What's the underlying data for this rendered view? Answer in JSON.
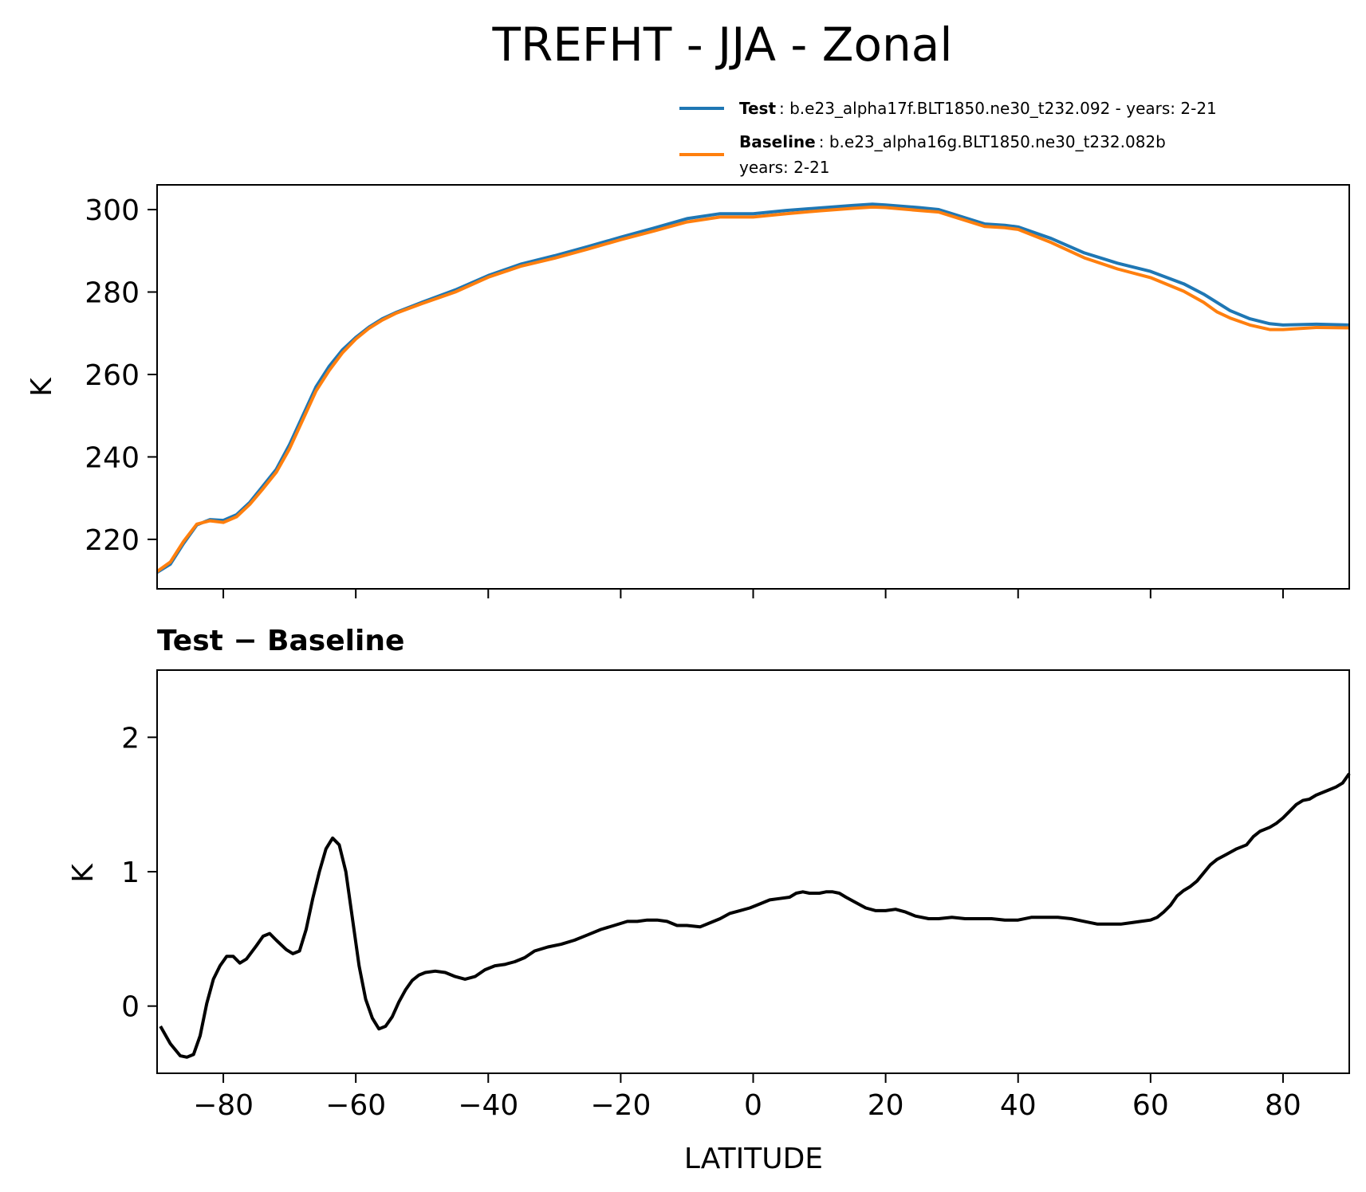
{
  "figure": {
    "title": "TREFHT - JJA - Zonal"
  },
  "legend": {
    "items": [
      {
        "key": "Test",
        "desc": ": b.e23_alpha17f.BLT1850.ne30_t232.092 - years: 2-21",
        "line2": ""
      },
      {
        "key": "Baseline",
        "desc": ": b.e23_alpha16g.BLT1850.ne30_t232.082b",
        "line2": "years: 2-21"
      }
    ]
  },
  "chart_data": [
    {
      "type": "line",
      "title": "",
      "xlabel": "",
      "ylabel": "K",
      "xlim": [
        -90,
        90
      ],
      "ylim": [
        208,
        306
      ],
      "yticks": [
        220,
        240,
        260,
        280,
        300
      ],
      "yticklabels": [
        "220",
        "240",
        "260",
        "280",
        "300"
      ],
      "grid": false,
      "legend_position": "above-right",
      "series": [
        {
          "name": "Test",
          "color": "#1f77b4",
          "points": [
            [
              -90,
              212
            ],
            [
              -88,
              214
            ],
            [
              -86,
              219
            ],
            [
              -84,
              223.5
            ],
            [
              -82,
              224.8
            ],
            [
              -80,
              224.6
            ],
            [
              -78,
              226
            ],
            [
              -76,
              229
            ],
            [
              -74,
              233
            ],
            [
              -72,
              237
            ],
            [
              -70,
              243
            ],
            [
              -68,
              250
            ],
            [
              -66,
              257
            ],
            [
              -64,
              262
            ],
            [
              -62,
              266
            ],
            [
              -60,
              269
            ],
            [
              -58,
              271.5
            ],
            [
              -56,
              273.5
            ],
            [
              -54,
              275
            ],
            [
              -50,
              277.5
            ],
            [
              -45,
              280.5
            ],
            [
              -40,
              284
            ],
            [
              -35,
              286.8
            ],
            [
              -30,
              288.8
            ],
            [
              -25,
              291
            ],
            [
              -20,
              293.3
            ],
            [
              -15,
              295.5
            ],
            [
              -10,
              297.8
            ],
            [
              -5,
              299
            ],
            [
              0,
              299
            ],
            [
              5,
              299.8
            ],
            [
              10,
              300.4
            ],
            [
              15,
              301
            ],
            [
              18,
              301.3
            ],
            [
              20,
              301.1
            ],
            [
              25,
              300.5
            ],
            [
              28,
              300
            ],
            [
              30,
              299
            ],
            [
              35,
              296.5
            ],
            [
              38,
              296.2
            ],
            [
              40,
              295.8
            ],
            [
              45,
              293
            ],
            [
              50,
              289.5
            ],
            [
              55,
              287
            ],
            [
              60,
              285
            ],
            [
              65,
              282
            ],
            [
              68,
              279.5
            ],
            [
              70,
              277.5
            ],
            [
              72,
              275.5
            ],
            [
              75,
              273.5
            ],
            [
              78,
              272.3
            ],
            [
              80,
              272
            ],
            [
              85,
              272.2
            ],
            [
              90,
              272
            ]
          ]
        },
        {
          "name": "Baseline",
          "color": "#ff7f0e",
          "points": [
            [
              -90,
              212.2
            ],
            [
              -88,
              214.5
            ],
            [
              -86,
              219.5
            ],
            [
              -84,
              223.7
            ],
            [
              -82,
              224.5
            ],
            [
              -80,
              224.1
            ],
            [
              -78,
              225.5
            ],
            [
              -76,
              228.5
            ],
            [
              -74,
              232.3
            ],
            [
              -72,
              236.3
            ],
            [
              -70,
              242
            ],
            [
              -68,
              249
            ],
            [
              -66,
              256
            ],
            [
              -64,
              261
            ],
            [
              -62,
              265.3
            ],
            [
              -60,
              268.6
            ],
            [
              -58,
              271.2
            ],
            [
              -56,
              273.2
            ],
            [
              -54,
              274.8
            ],
            [
              -50,
              277.2
            ],
            [
              -45,
              280
            ],
            [
              -40,
              283.6
            ],
            [
              -35,
              286.3
            ],
            [
              -30,
              288.2
            ],
            [
              -25,
              290.4
            ],
            [
              -20,
              292.7
            ],
            [
              -15,
              294.8
            ],
            [
              -10,
              297
            ],
            [
              -5,
              298.2
            ],
            [
              0,
              298.2
            ],
            [
              5,
              299
            ],
            [
              10,
              299.7
            ],
            [
              15,
              300.3
            ],
            [
              18,
              300.6
            ],
            [
              20,
              300.5
            ],
            [
              25,
              299.8
            ],
            [
              28,
              299.4
            ],
            [
              30,
              298.4
            ],
            [
              35,
              295.9
            ],
            [
              38,
              295.6
            ],
            [
              40,
              295.2
            ],
            [
              45,
              292
            ],
            [
              50,
              288.3
            ],
            [
              55,
              285.6
            ],
            [
              60,
              283.5
            ],
            [
              65,
              280.2
            ],
            [
              68,
              277.5
            ],
            [
              70,
              275.2
            ],
            [
              72,
              273.7
            ],
            [
              75,
              272
            ],
            [
              78,
              270.9
            ],
            [
              80,
              270.9
            ],
            [
              85,
              271.4
            ],
            [
              90,
              271.3
            ]
          ]
        }
      ]
    },
    {
      "type": "line",
      "title": "Test − Baseline",
      "xlabel": "LATITUDE",
      "ylabel": "K",
      "xlim": [
        -90,
        90
      ],
      "ylim": [
        -0.5,
        2.5
      ],
      "xticks": [
        -80,
        -60,
        -40,
        -20,
        0,
        20,
        40,
        60,
        80
      ],
      "xticklabels": [
        "−80",
        "−60",
        "−40",
        "−20",
        "0",
        "20",
        "40",
        "60",
        "80"
      ],
      "yticks": [
        0,
        1,
        2
      ],
      "yticklabels": [
        "0",
        "1",
        "2"
      ],
      "grid": false,
      "series": [
        {
          "color": "#000000",
          "points": [
            [
              -89.5,
              -0.15
            ],
            [
              -88,
              -0.28
            ],
            [
              -86.5,
              -0.37
            ],
            [
              -85.5,
              -0.38
            ],
            [
              -84.5,
              -0.36
            ],
            [
              -83.5,
              -0.22
            ],
            [
              -82.5,
              0.02
            ],
            [
              -81.5,
              0.2
            ],
            [
              -80.5,
              0.3
            ],
            [
              -79.5,
              0.37
            ],
            [
              -78.5,
              0.37
            ],
            [
              -77.5,
              0.32
            ],
            [
              -76.5,
              0.35
            ],
            [
              -75,
              0.45
            ],
            [
              -74,
              0.52
            ],
            [
              -73,
              0.54
            ],
            [
              -72,
              0.49
            ],
            [
              -70.5,
              0.42
            ],
            [
              -69.5,
              0.39
            ],
            [
              -68.5,
              0.41
            ],
            [
              -67.5,
              0.57
            ],
            [
              -66.5,
              0.8
            ],
            [
              -65.5,
              1.0
            ],
            [
              -64.5,
              1.17
            ],
            [
              -63.5,
              1.25
            ],
            [
              -62.5,
              1.2
            ],
            [
              -61.5,
              1.0
            ],
            [
              -60.5,
              0.65
            ],
            [
              -59.5,
              0.3
            ],
            [
              -58.5,
              0.05
            ],
            [
              -57.5,
              -0.09
            ],
            [
              -56.5,
              -0.17
            ],
            [
              -55.5,
              -0.15
            ],
            [
              -54.5,
              -0.08
            ],
            [
              -53.5,
              0.03
            ],
            [
              -52.5,
              0.12
            ],
            [
              -51.5,
              0.19
            ],
            [
              -50.5,
              0.23
            ],
            [
              -49.5,
              0.25
            ],
            [
              -48,
              0.26
            ],
            [
              -46.5,
              0.25
            ],
            [
              -45,
              0.22
            ],
            [
              -43.5,
              0.2
            ],
            [
              -42,
              0.22
            ],
            [
              -40.5,
              0.27
            ],
            [
              -39,
              0.3
            ],
            [
              -37.5,
              0.31
            ],
            [
              -36,
              0.33
            ],
            [
              -34.5,
              0.36
            ],
            [
              -33,
              0.41
            ],
            [
              -31,
              0.44
            ],
            [
              -29,
              0.46
            ],
            [
              -27,
              0.49
            ],
            [
              -25,
              0.53
            ],
            [
              -23,
              0.57
            ],
            [
              -21,
              0.6
            ],
            [
              -19,
              0.63
            ],
            [
              -17.5,
              0.63
            ],
            [
              -16,
              0.64
            ],
            [
              -14.5,
              0.64
            ],
            [
              -13,
              0.63
            ],
            [
              -11.5,
              0.6
            ],
            [
              -10,
              0.6
            ],
            [
              -8,
              0.59
            ],
            [
              -6.5,
              0.62
            ],
            [
              -5,
              0.65
            ],
            [
              -3.5,
              0.69
            ],
            [
              -2,
              0.71
            ],
            [
              -0.5,
              0.73
            ],
            [
              1,
              0.76
            ],
            [
              2.5,
              0.79
            ],
            [
              4,
              0.8
            ],
            [
              5.5,
              0.81
            ],
            [
              6.5,
              0.84
            ],
            [
              7.5,
              0.85
            ],
            [
              8.5,
              0.84
            ],
            [
              10,
              0.84
            ],
            [
              11,
              0.85
            ],
            [
              12,
              0.85
            ],
            [
              13,
              0.84
            ],
            [
              14,
              0.81
            ],
            [
              15.5,
              0.77
            ],
            [
              17,
              0.73
            ],
            [
              18.5,
              0.71
            ],
            [
              20,
              0.71
            ],
            [
              21.5,
              0.72
            ],
            [
              23,
              0.7
            ],
            [
              24.5,
              0.67
            ],
            [
              26.5,
              0.65
            ],
            [
              28,
              0.65
            ],
            [
              30,
              0.66
            ],
            [
              32,
              0.65
            ],
            [
              34,
              0.65
            ],
            [
              36,
              0.65
            ],
            [
              38,
              0.64
            ],
            [
              40,
              0.64
            ],
            [
              42,
              0.66
            ],
            [
              44,
              0.66
            ],
            [
              46,
              0.66
            ],
            [
              48,
              0.65
            ],
            [
              50,
              0.63
            ],
            [
              52,
              0.61
            ],
            [
              54,
              0.61
            ],
            [
              55.5,
              0.61
            ],
            [
              57,
              0.62
            ],
            [
              58.5,
              0.63
            ],
            [
              60,
              0.64
            ],
            [
              61,
              0.66
            ],
            [
              62,
              0.7
            ],
            [
              63,
              0.75
            ],
            [
              64,
              0.82
            ],
            [
              65,
              0.86
            ],
            [
              66,
              0.89
            ],
            [
              67,
              0.93
            ],
            [
              68,
              0.99
            ],
            [
              69,
              1.05
            ],
            [
              70,
              1.09
            ],
            [
              71.5,
              1.13
            ],
            [
              73,
              1.17
            ],
            [
              74.5,
              1.2
            ],
            [
              75.5,
              1.26
            ],
            [
              76.5,
              1.3
            ],
            [
              78,
              1.33
            ],
            [
              79,
              1.36
            ],
            [
              80,
              1.4
            ],
            [
              81,
              1.45
            ],
            [
              82,
              1.5
            ],
            [
              83,
              1.53
            ],
            [
              84,
              1.54
            ],
            [
              85,
              1.57
            ],
            [
              86,
              1.59
            ],
            [
              87,
              1.61
            ],
            [
              88,
              1.63
            ],
            [
              89,
              1.66
            ],
            [
              90,
              1.73
            ]
          ]
        }
      ]
    }
  ]
}
